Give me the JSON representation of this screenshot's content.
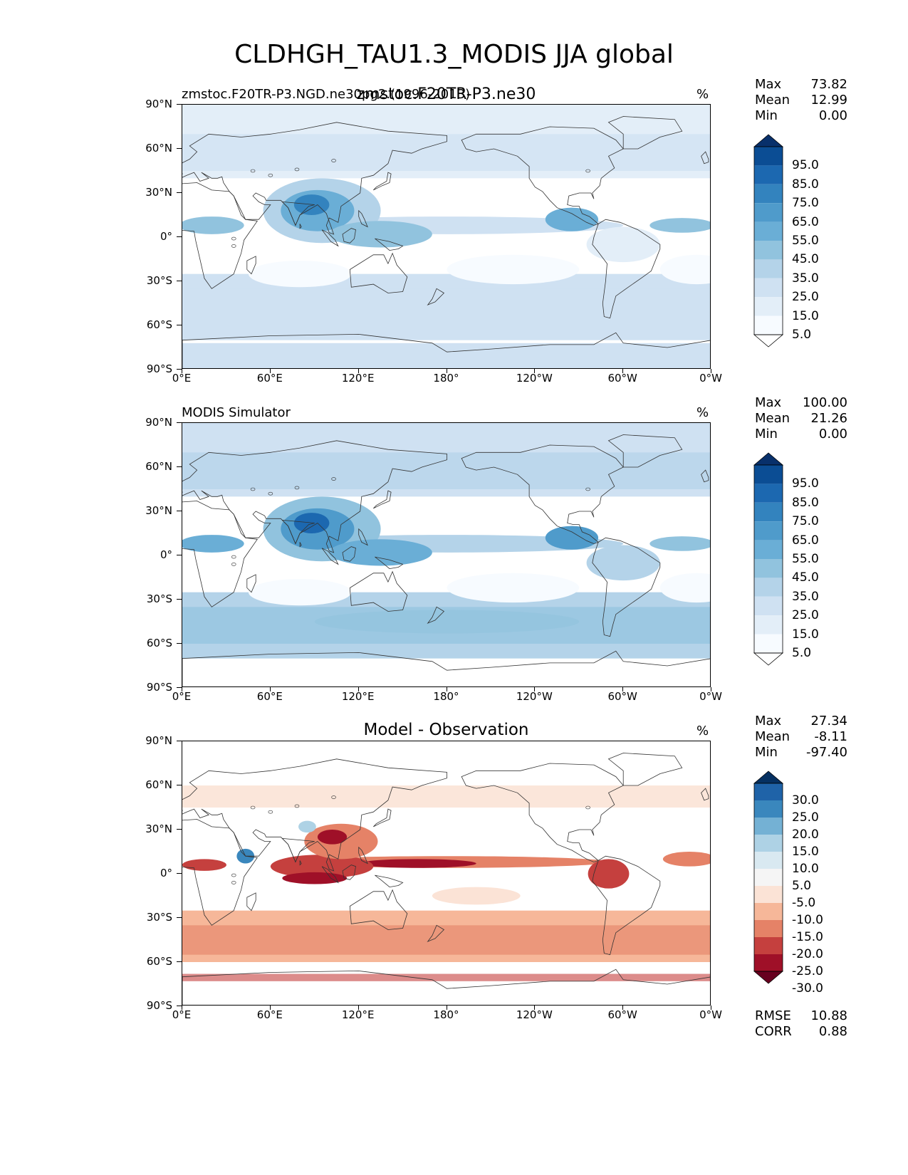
{
  "figure_title": "CLDHGH_TAU1.3_MODIS JJA global",
  "panels": [
    {
      "id": "test",
      "left_label": "zmstoc.F20TR-P3.NGD.ne30pg2.(1996-2013)",
      "center_label": "zmstoc.F20TR-P3.ne30",
      "unit": "%",
      "stats": {
        "max_label": "Max",
        "max": "73.82",
        "mean_label": "Mean",
        "mean": "12.99",
        "min_label": "Min",
        "min": "0.00"
      },
      "colorbar_labels": [
        "95.0",
        "85.0",
        "75.0",
        "65.0",
        "55.0",
        "45.0",
        "35.0",
        "25.0",
        "15.0",
        "5.0"
      ],
      "colorbar_colors": [
        "#08306b",
        "#0b4d94",
        "#1c68b0",
        "#3383be",
        "#4f9bcb",
        "#6aaed6",
        "#91c3de",
        "#b4d3e9",
        "#cfe1f2",
        "#e3eef8",
        "#f7fbff",
        "#ffffff"
      ]
    },
    {
      "id": "reference",
      "left_label": "MODIS Simulator",
      "center_label": "",
      "unit": "%",
      "stats": {
        "max_label": "Max",
        "max": "100.00",
        "mean_label": "Mean",
        "mean": "21.26",
        "min_label": "Min",
        "min": "0.00"
      },
      "colorbar_labels": [
        "95.0",
        "85.0",
        "75.0",
        "65.0",
        "55.0",
        "45.0",
        "35.0",
        "25.0",
        "15.0",
        "5.0"
      ],
      "colorbar_colors": [
        "#08306b",
        "#0b4d94",
        "#1c68b0",
        "#3383be",
        "#4f9bcb",
        "#6aaed6",
        "#91c3de",
        "#b4d3e9",
        "#cfe1f2",
        "#e3eef8",
        "#f7fbff",
        "#ffffff"
      ]
    },
    {
      "id": "diff",
      "left_label": "",
      "center_label": "Model - Observation",
      "unit": "%",
      "stats": {
        "max_label": "Max",
        "max": "27.34",
        "mean_label": "Mean",
        "mean": "-8.11",
        "min_label": "Min",
        "min": "-97.40"
      },
      "colorbar_labels": [
        "30.0",
        "25.0",
        "20.0",
        "15.0",
        "10.0",
        "5.0",
        "-5.0",
        "-10.0",
        "-15.0",
        "-20.0",
        "-25.0",
        "-30.0"
      ],
      "colorbar_colors": [
        "#053061",
        "#1f63a8",
        "#3a87bd",
        "#74b1d4",
        "#aed2e5",
        "#d9e9f1",
        "#f5f5f5",
        "#fbe3d6",
        "#f6b799",
        "#e58267",
        "#c5403e",
        "#9f1028",
        "#67001f"
      ],
      "rmse_label": "RMSE",
      "rmse": "10.88",
      "corr_label": "CORR",
      "corr": "0.88"
    }
  ],
  "axes": {
    "lat_ticks": [
      "90°N",
      "60°N",
      "30°N",
      "0°",
      "30°S",
      "60°S",
      "90°S"
    ],
    "lon_ticks": [
      "0°E",
      "60°E",
      "120°E",
      "180°",
      "120°W",
      "60°W",
      "0°W"
    ]
  }
}
